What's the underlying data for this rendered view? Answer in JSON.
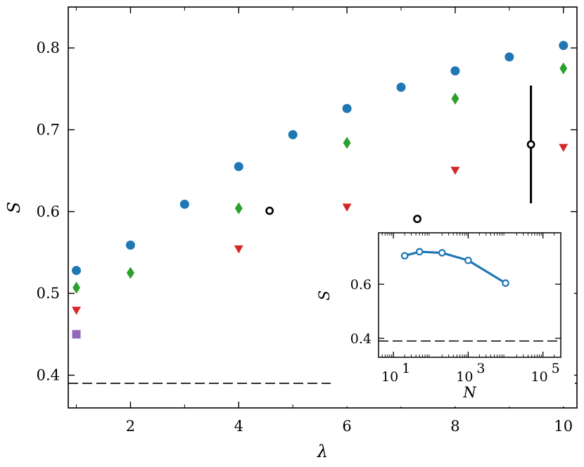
{
  "chart_data": [
    {
      "type": "scatter",
      "xlabel": "λ",
      "ylabel": "S",
      "xlim": [
        0.85,
        10.25
      ],
      "ylim": [
        0.36,
        0.85
      ],
      "xticks": [
        2,
        4,
        6,
        8,
        10
      ],
      "yticks": [
        0.4,
        0.5,
        0.6,
        0.7,
        0.8
      ],
      "xtick_labels": [
        "2",
        "4",
        "6",
        "8",
        "10"
      ],
      "ytick_labels": [
        "0.4",
        "0.5",
        "0.6",
        "0.7",
        "0.8"
      ],
      "grid": false,
      "reference_line": {
        "y": 0.39,
        "style": "dashed",
        "color": "#000000"
      },
      "series": [
        {
          "marker": "circle",
          "color": "#1f77b4",
          "x": [
            1,
            2,
            3,
            4,
            5,
            6,
            7,
            8,
            9,
            10
          ],
          "y": [
            0.528,
            0.559,
            0.609,
            0.655,
            0.694,
            0.726,
            0.752,
            0.772,
            0.789,
            0.803
          ]
        },
        {
          "marker": "diamond",
          "color": "#2ca02c",
          "x": [
            1,
            2,
            4,
            6,
            8,
            10
          ],
          "y": [
            0.507,
            0.525,
            0.604,
            0.684,
            0.738,
            0.775
          ]
        },
        {
          "marker": "triangle-down",
          "color": "#d62728",
          "x": [
            1,
            4,
            6,
            8,
            10
          ],
          "y": [
            0.479,
            0.554,
            0.605,
            0.65,
            0.678
          ]
        },
        {
          "marker": "square",
          "color": "#9467bd",
          "x": [
            1
          ],
          "y": [
            0.45
          ]
        },
        {
          "marker": "open-circle",
          "color": "#000000",
          "x": [
            4.57,
            7.3,
            9.4
          ],
          "y": [
            0.601,
            0.591,
            0.682
          ],
          "error": [
            0,
            0,
            0.072
          ]
        }
      ]
    },
    {
      "type": "line",
      "xlabel": "N",
      "ylabel": "S",
      "xscale": "log",
      "xlim": [
        4,
        300000
      ],
      "ylim": [
        0.33,
        0.79
      ],
      "xticks": [
        10,
        1000,
        100000
      ],
      "xtick_labels": [
        {
          "base": "10",
          "exp": "1"
        },
        {
          "base": "10",
          "exp": "3"
        },
        {
          "base": "10",
          "exp": "5"
        }
      ],
      "yticks": [
        0.4,
        0.6
      ],
      "ytick_labels": [
        "0.4",
        "0.6"
      ],
      "reference_line": {
        "y": 0.39,
        "style": "dashed",
        "color": "#000000"
      },
      "series": [
        {
          "color": "#1f77b4",
          "marker": "open-circle",
          "x": [
            20,
            50,
            200,
            1000,
            10000
          ],
          "y": [
            0.705,
            0.72,
            0.716,
            0.688,
            0.604
          ]
        }
      ]
    }
  ]
}
